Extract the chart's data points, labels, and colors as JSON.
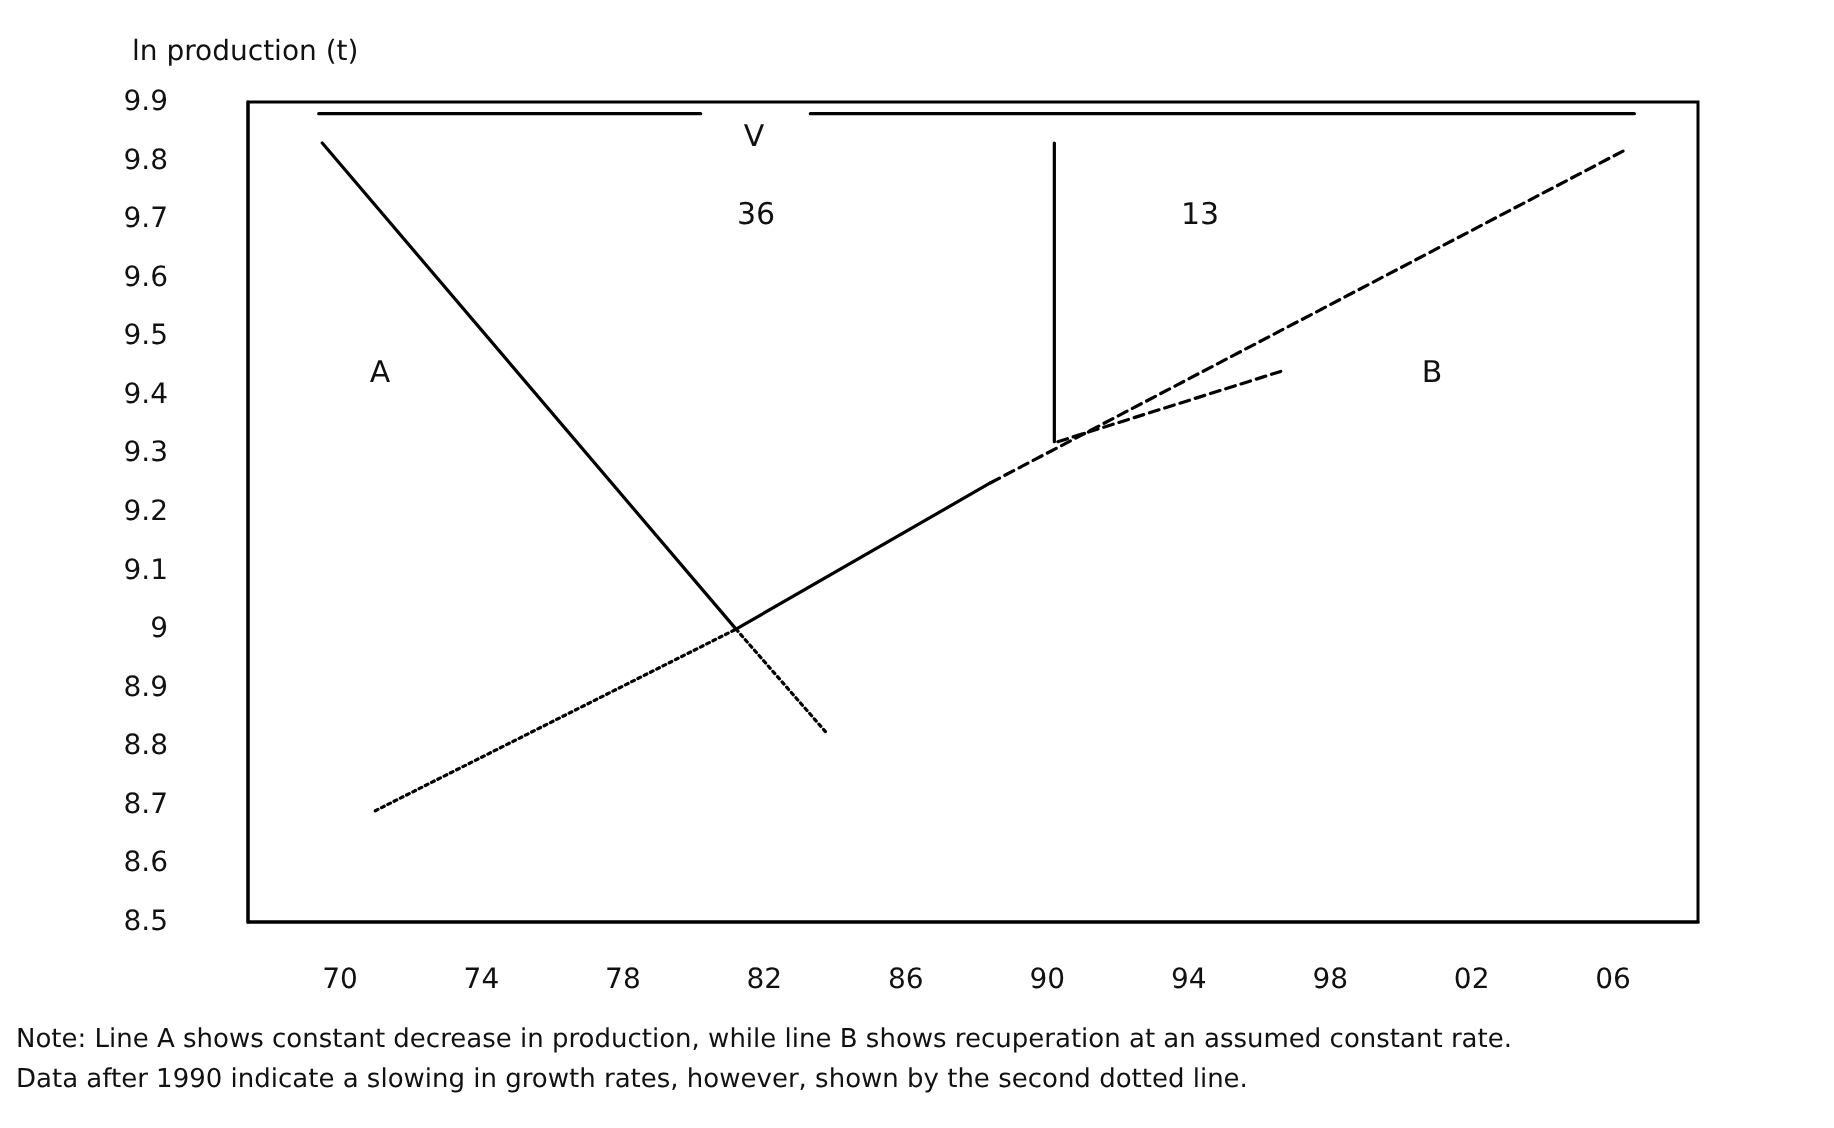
{
  "chart_data": {
    "type": "line",
    "ylabel": "ln production (t)",
    "xlim": [
      1967.4,
      2008.4
    ],
    "ylim": [
      8.5,
      9.9
    ],
    "xticks": [
      {
        "value": 1970,
        "label": "70"
      },
      {
        "value": 1974,
        "label": "74"
      },
      {
        "value": 1978,
        "label": "78"
      },
      {
        "value": 1982,
        "label": "82"
      },
      {
        "value": 1986,
        "label": "86"
      },
      {
        "value": 1990,
        "label": "90"
      },
      {
        "value": 1994,
        "label": "94"
      },
      {
        "value": 1998,
        "label": "98"
      },
      {
        "value": 2002,
        "label": "02"
      },
      {
        "value": 2006,
        "label": "06"
      }
    ],
    "yticks": [
      8.5,
      8.6,
      8.7,
      8.8,
      8.9,
      9,
      9.1,
      9.2,
      9.3,
      9.4,
      9.5,
      9.6,
      9.7,
      9.8,
      9.9
    ],
    "grid": false,
    "marker": "none",
    "series": [
      {
        "color": "#000000",
        "line_style": "solid",
        "x": [
          1969.5,
          1981.2
        ],
        "values": [
          9.83,
          9.0
        ]
      },
      {
        "color": "#000000",
        "line_style": "dotted",
        "x": [
          1981.2,
          1983.8
        ],
        "values": [
          9.0,
          8.82
        ]
      },
      {
        "color": "#000000",
        "line_style": "dotted",
        "x": [
          1971.0,
          1981.2
        ],
        "values": [
          8.69,
          9.0
        ]
      },
      {
        "color": "#000000",
        "line_style": "solid",
        "x": [
          1981.2,
          1988.4
        ],
        "values": [
          9.0,
          9.25
        ]
      },
      {
        "color": "#000000",
        "line_style": "dashed",
        "x": [
          1988.4,
          2006.4
        ],
        "values": [
          9.25,
          9.82
        ]
      },
      {
        "color": "#000000",
        "line_style": "dashed",
        "x": [
          1990.3,
          1996.6
        ],
        "values": [
          9.32,
          9.44
        ]
      },
      {
        "color": "#000000",
        "line_style": "solid",
        "x": [
          1990.2,
          1990.2
        ],
        "values": [
          9.32,
          9.83
        ]
      },
      {
        "color": "#000000",
        "line_style": "solid",
        "x": [
          1969.4,
          1980.2
        ],
        "values": [
          9.88,
          9.88
        ]
      },
      {
        "color": "#000000",
        "line_style": "solid",
        "x": [
          1983.3,
          2006.6
        ],
        "values": [
          9.88,
          9.88
        ]
      }
    ],
    "annotations": [
      "A",
      "B",
      "V",
      "36",
      "13",
      "Note: Line A shows constant decrease in production, while line B shows recuperation at an assumed constant rate. Data after 1990 indicate a slowing in growth rates, however, shown by the second dotted line."
    ]
  }
}
